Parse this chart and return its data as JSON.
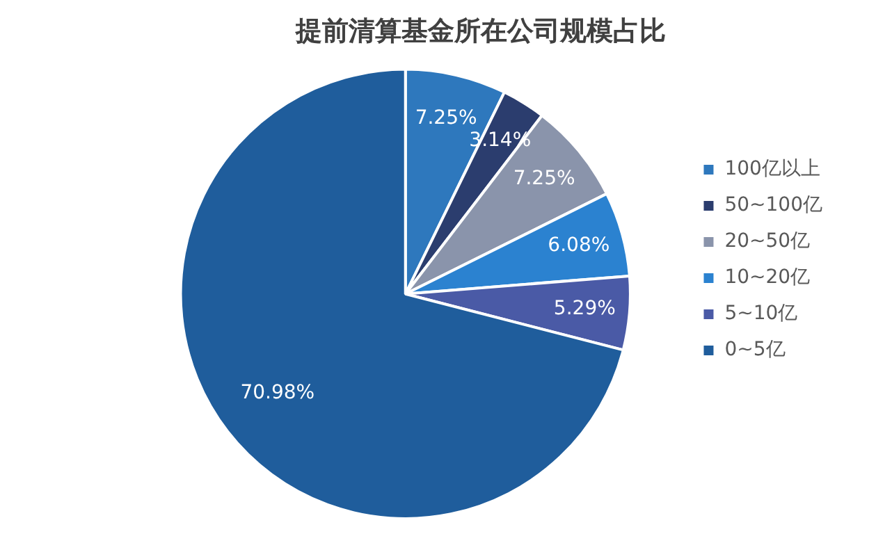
{
  "chart_data": {
    "type": "pie",
    "title": "提前清算基金所在公司规模占比",
    "categories": [
      "100亿以上",
      "50~100亿",
      "20~50亿",
      "10~20亿",
      "5~10亿",
      "0~5亿"
    ],
    "values": [
      7.25,
      3.14,
      7.25,
      6.08,
      5.29,
      70.98
    ],
    "colors": [
      "#2e78bd",
      "#2b3d6e",
      "#8a94ab",
      "#2b82d0",
      "#4a5aa6",
      "#1f5d9c"
    ],
    "value_labels": [
      "7.25%",
      "3.14%",
      "7.25%",
      "6.08%",
      "5.29%",
      "70.98%"
    ],
    "legend": "right"
  }
}
